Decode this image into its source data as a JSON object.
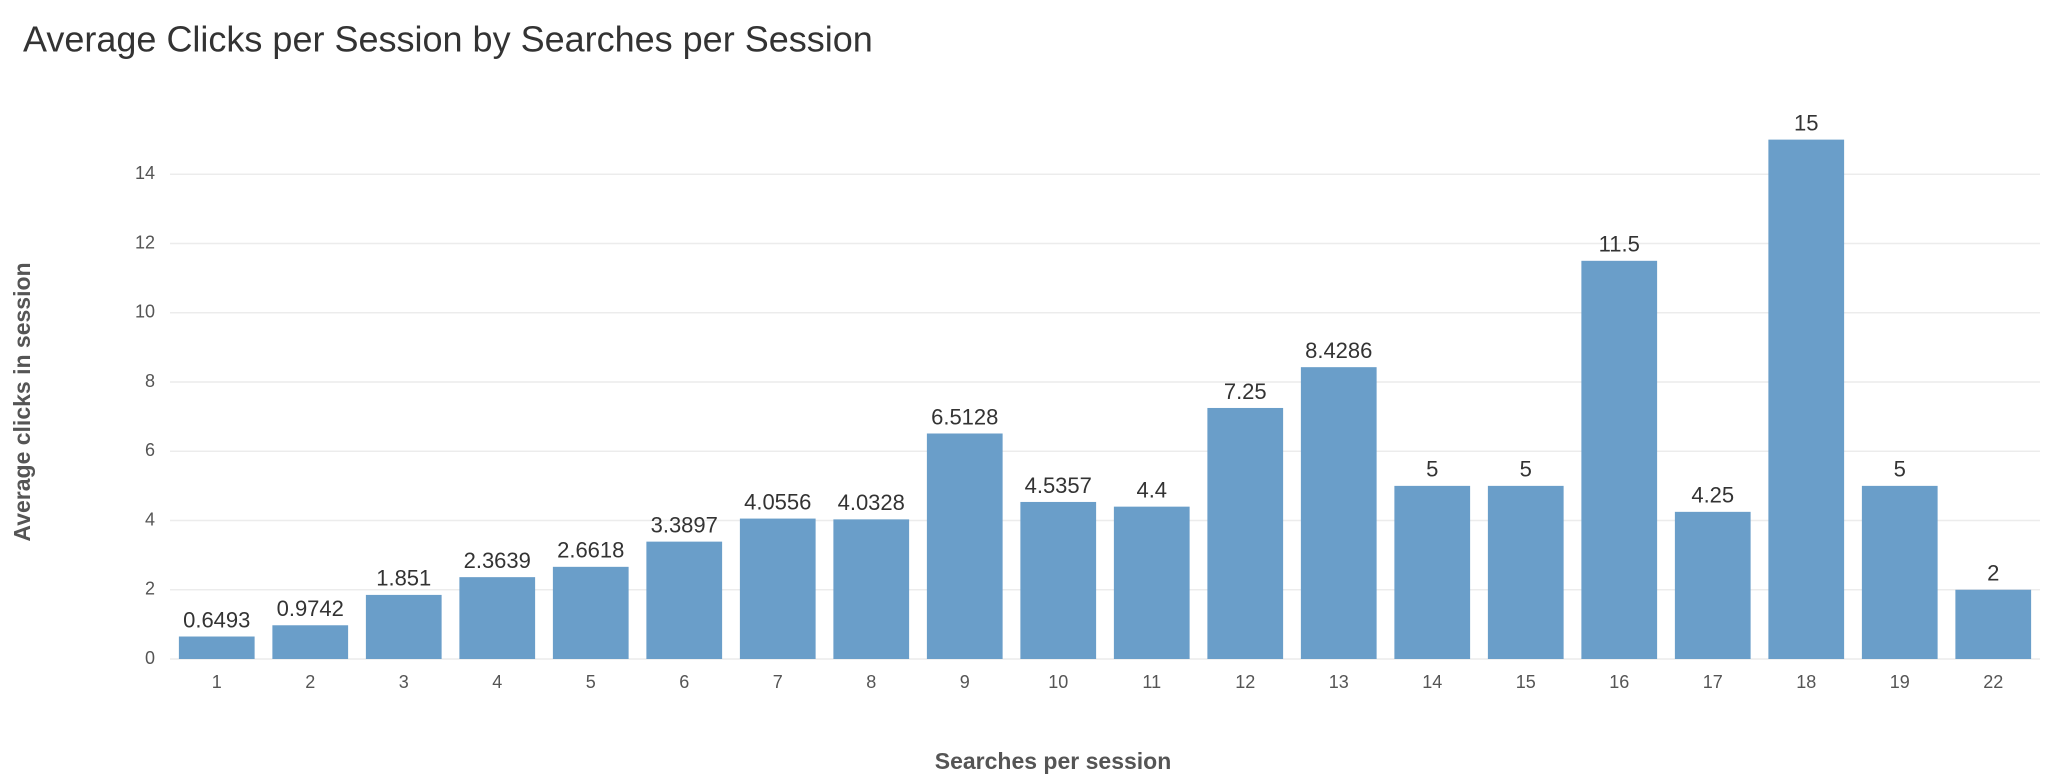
{
  "chart_data": {
    "type": "bar",
    "title": "Average Clicks per Session by Searches per Session",
    "x_label": "Searches per session",
    "y_label": "Average clicks in session",
    "categories": [
      "1",
      "2",
      "3",
      "4",
      "5",
      "6",
      "7",
      "8",
      "9",
      "10",
      "11",
      "12",
      "13",
      "14",
      "15",
      "16",
      "17",
      "18",
      "19",
      "22"
    ],
    "values": [
      0.6493,
      0.9742,
      1.851,
      2.3639,
      2.6618,
      3.3897,
      4.0556,
      4.0328,
      6.5128,
      4.5357,
      4.4,
      7.25,
      8.4286,
      5,
      5,
      11.5,
      4.25,
      15,
      5,
      2
    ],
    "color": "#6a9ec9",
    "ylim": [
      0,
      16
    ],
    "yticks": [
      0,
      2,
      4,
      6,
      8,
      10,
      12,
      14
    ],
    "grid": true
  }
}
